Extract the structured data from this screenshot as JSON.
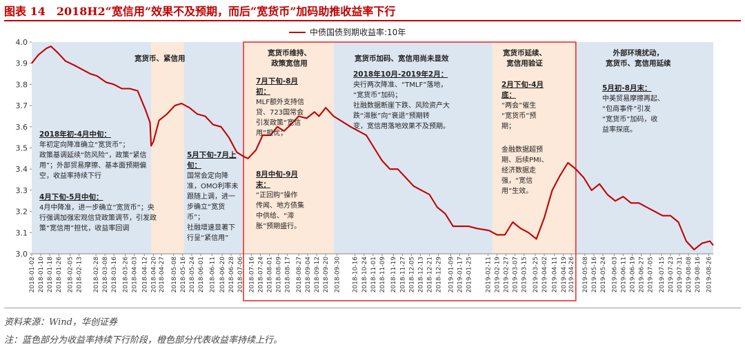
{
  "title": "图表 14　2018H2“宽信用”效果不及预期，而后“宽货币”加码助推收益率下行",
  "source": "资料来源：Wind，华创证券",
  "note": "注：蓝色部分为收益率持续下行阶段，橙色部分代表收益率持续上行。",
  "colors": {
    "line": "#c00000",
    "blue_band": "#dce6f1",
    "orange_band": "#fde9d9",
    "box": "#e8302c"
  },
  "annotations": {
    "a1_title": "宽货币、紧信用",
    "a2_head": "2018年初-4月中旬：",
    "a2_body": [
      "年初定向降准确立“宽货币”；",
      "政策基调延续“防风险”，政策“紧信",
      "用”；外部贸易摩擦、基本面预期偏",
      "空，收益率持续下行"
    ],
    "a3_head": "4月下旬-5月中旬：",
    "a3_body": [
      "4月中降准，进一步确立“宽货币”；央",
      "行强调加强宏观信贷政策调节，引发政",
      "策“宽信用”担忧，收益率回调"
    ],
    "a4_head": [
      "5月下旬-7月上",
      "旬："
    ],
    "a4_body": [
      "国常会定向降",
      "准，OMO利率未",
      "跟随上调，进一",
      "步确立“宽货",
      "币”；",
      "社融增速显著下",
      "行呈“紧信用”"
    ],
    "a5_title": [
      "宽货币维持、",
      "政策宽信用"
    ],
    "a6_head": [
      "7月下旬-8月",
      "初："
    ],
    "a6_body": [
      "MLF额外支持信",
      "贷、723国常会",
      "引发政策“宽信",
      "用”担忧；"
    ],
    "a7_head": [
      "8月中旬-9月",
      "末："
    ],
    "a7_body": [
      "“正回购”操作",
      "传闻、地方债集",
      "中供给、“滞",
      "胀”预期盛行。"
    ],
    "a8_title": "宽货币加码、宽信用尚未显效",
    "a9_head": "2018年10月-2019年2月：",
    "a9_body": [
      "央行两次降准、“TMLF”落地，",
      "“宽货币”加码；",
      "社融数据断崖下跌、风险资产大",
      "跌“滞胀”向“衰退”预期转",
      "变，宽信用落地效果不及预期。"
    ],
    "a10_title": [
      "宽货币延续、",
      "宽信用验证"
    ],
    "a11_head": [
      "2月下旬-4月",
      "底："
    ],
    "a11_body": [
      "“两会”催生",
      "“宽货币”预",
      "期；"
    ],
    "a12_body": [
      "金融数据超预",
      "期、后续PMI、",
      "经济数据走",
      "强，“宽信",
      "用”生效。"
    ],
    "a13_title": [
      "外部环境扰动，",
      "宽货币、宽信用延续"
    ],
    "a14_head": "5月初-8月末：",
    "a14_body": [
      "中美贸易摩擦再起、",
      "“包商事件”引发",
      "“宽货币”加码，收",
      "益率探底。"
    ]
  },
  "chart_data": {
    "type": "line",
    "legend": "中债国债到期收益率:10年",
    "legend_position": "top-center",
    "ylim": [
      3.0,
      4.0
    ],
    "yticks": [
      "3.0",
      "3.1",
      "3.2",
      "3.3",
      "3.4",
      "3.5",
      "3.6",
      "3.7",
      "3.8",
      "3.9",
      "4.0"
    ],
    "x_range": [
      "2018-01-02",
      "2019-08-30"
    ],
    "xticks": [
      "2018-01-02",
      "2018-01-10",
      "2018-01-18",
      "2018-01-26",
      "2018-02-05",
      "2018-02-13",
      "2018-02-28",
      "2018-03-08",
      "2018-03-16",
      "2018-03-26",
      "2018-04-03",
      "2018-04-12",
      "2018-04-20",
      "2018-04-27",
      "2018-05-08",
      "2018-05-16",
      "2018-05-24",
      "2018-06-01",
      "2018-06-11",
      "2018-06-20",
      "2018-06-28",
      "2018-07-06",
      "2018-07-16",
      "2018-07-24",
      "2018-08-01",
      "2018-08-09",
      "2018-08-17",
      "2018-08-27",
      "2018-09-04",
      "2018-09-12",
      "2018-09-20",
      "2018-09-30",
      "2018-10-16",
      "2018-10-24",
      "2018-11-01",
      "2018-11-09",
      "2018-11-19",
      "2018-11-27",
      "2018-12-05",
      "2018-12-13",
      "2018-12-21",
      "2018-12-29",
      "2019-01-09",
      "2019-01-17",
      "2019-01-25",
      "2019-02-11",
      "2019-02-19",
      "2019-02-27",
      "2019-03-07",
      "2019-03-15",
      "2019-03-25",
      "2019-04-02",
      "2019-04-11",
      "2019-04-19",
      "2019-04-26",
      "2019-05-08",
      "2019-05-16",
      "2019-05-24",
      "2019-06-03",
      "2019-06-11",
      "2019-06-19",
      "2019-06-27",
      "2019-07-05",
      "2019-07-15",
      "2019-07-23",
      "2019-07-31",
      "2019-08-08",
      "2019-08-16",
      "2019-08-26"
    ],
    "bands": [
      {
        "kind": "down",
        "start": "2018-01-02",
        "end": "2018-04-18"
      },
      {
        "kind": "up",
        "start": "2018-04-18",
        "end": "2018-05-17"
      },
      {
        "kind": "down",
        "start": "2018-05-17",
        "end": "2018-07-09"
      },
      {
        "kind": "up",
        "start": "2018-07-09",
        "end": "2018-09-27"
      },
      {
        "kind": "down",
        "start": "2018-09-27",
        "end": "2019-02-15"
      },
      {
        "kind": "up",
        "start": "2019-02-15",
        "end": "2019-04-30"
      },
      {
        "kind": "down",
        "start": "2019-04-30",
        "end": "2019-08-30"
      }
    ],
    "highlight_box": {
      "start": "2018-07-09",
      "end": "2019-04-30"
    },
    "series": [
      {
        "name": "中债国债到期收益率:10年",
        "x": [
          "2018-01-02",
          "2018-01-08",
          "2018-01-15",
          "2018-01-19",
          "2018-01-25",
          "2018-02-01",
          "2018-02-09",
          "2018-02-23",
          "2018-03-01",
          "2018-03-09",
          "2018-03-16",
          "2018-03-23",
          "2018-03-30",
          "2018-04-06",
          "2018-04-13",
          "2018-04-17",
          "2018-04-18",
          "2018-04-20",
          "2018-04-25",
          "2018-05-02",
          "2018-05-09",
          "2018-05-15",
          "2018-05-22",
          "2018-05-29",
          "2018-06-05",
          "2018-06-12",
          "2018-06-19",
          "2018-06-26",
          "2018-07-03",
          "2018-07-09",
          "2018-07-13",
          "2018-07-20",
          "2018-07-26",
          "2018-08-02",
          "2018-08-08",
          "2018-08-14",
          "2018-08-20",
          "2018-08-27",
          "2018-09-03",
          "2018-09-10",
          "2018-09-14",
          "2018-09-20",
          "2018-09-27",
          "2018-10-12",
          "2018-10-19",
          "2018-10-26",
          "2018-11-02",
          "2018-11-09",
          "2018-11-16",
          "2018-11-23",
          "2018-11-30",
          "2018-12-07",
          "2018-12-14",
          "2018-12-21",
          "2018-12-28",
          "2019-01-04",
          "2019-01-11",
          "2019-01-18",
          "2019-01-25",
          "2019-02-01",
          "2019-02-12",
          "2019-02-19",
          "2019-02-26",
          "2019-03-05",
          "2019-03-12",
          "2019-03-19",
          "2019-03-26",
          "2019-04-02",
          "2019-04-09",
          "2019-04-16",
          "2019-04-23",
          "2019-04-30",
          "2019-05-07",
          "2019-05-14",
          "2019-05-21",
          "2019-05-28",
          "2019-06-04",
          "2019-06-11",
          "2019-06-18",
          "2019-06-25",
          "2019-07-02",
          "2019-07-09",
          "2019-07-16",
          "2019-07-23",
          "2019-07-30",
          "2019-08-06",
          "2019-08-13",
          "2019-08-20",
          "2019-08-27",
          "2019-08-30"
        ],
        "values": [
          3.9,
          3.94,
          3.97,
          3.98,
          3.95,
          3.91,
          3.89,
          3.85,
          3.84,
          3.81,
          3.8,
          3.78,
          3.78,
          3.77,
          3.68,
          3.62,
          3.51,
          3.53,
          3.63,
          3.66,
          3.7,
          3.71,
          3.69,
          3.66,
          3.65,
          3.61,
          3.6,
          3.55,
          3.48,
          3.46,
          3.45,
          3.49,
          3.56,
          3.56,
          3.6,
          3.58,
          3.61,
          3.65,
          3.64,
          3.67,
          3.65,
          3.69,
          3.65,
          3.6,
          3.58,
          3.56,
          3.5,
          3.44,
          3.4,
          3.4,
          3.36,
          3.32,
          3.3,
          3.28,
          3.22,
          3.19,
          3.13,
          3.13,
          3.13,
          3.12,
          3.11,
          3.09,
          3.09,
          3.15,
          3.12,
          3.1,
          3.07,
          3.17,
          3.3,
          3.37,
          3.43,
          3.4,
          3.36,
          3.3,
          3.33,
          3.28,
          3.25,
          3.27,
          3.24,
          3.24,
          3.22,
          3.2,
          3.18,
          3.18,
          3.15,
          3.06,
          3.02,
          3.05,
          3.06,
          3.04
        ]
      }
    ]
  }
}
